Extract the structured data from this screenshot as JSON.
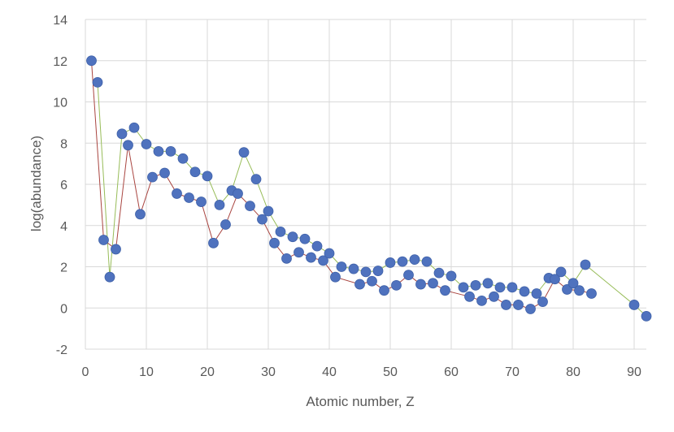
{
  "chart_data": {
    "type": "scatter",
    "xlabel": "Atomic number, Z",
    "ylabel": "log(abundance)",
    "xlim": [
      0,
      92
    ],
    "ylim": [
      -2,
      14
    ],
    "x_ticks": [
      0,
      10,
      20,
      30,
      40,
      50,
      60,
      70,
      80,
      90
    ],
    "y_ticks": [
      -2,
      0,
      2,
      4,
      6,
      8,
      10,
      12,
      14
    ],
    "grid": true,
    "colors": {
      "marker": "#4f72be",
      "odd_line": "#a94540",
      "even_line": "#97bc58",
      "grid": "#d9d9d9",
      "text": "#595959"
    },
    "series": [
      {
        "values": [
          [
            1,
            12.0
          ],
          [
            2,
            10.95
          ],
          [
            3,
            3.3
          ],
          [
            4,
            1.5
          ],
          [
            5,
            2.85
          ],
          [
            6,
            8.45
          ],
          [
            7,
            7.9
          ],
          [
            8,
            8.75
          ],
          [
            9,
            4.55
          ],
          [
            10,
            7.95
          ],
          [
            11,
            6.35
          ],
          [
            12,
            7.6
          ],
          [
            13,
            6.55
          ],
          [
            14,
            7.6
          ],
          [
            15,
            5.55
          ],
          [
            16,
            7.25
          ],
          [
            17,
            5.35
          ],
          [
            18,
            6.6
          ],
          [
            19,
            5.15
          ],
          [
            20,
            6.4
          ],
          [
            21,
            3.15
          ],
          [
            22,
            5.0
          ],
          [
            23,
            4.05
          ],
          [
            24,
            5.7
          ],
          [
            25,
            5.55
          ],
          [
            26,
            7.55
          ],
          [
            27,
            4.95
          ],
          [
            28,
            6.25
          ],
          [
            29,
            4.3
          ],
          [
            30,
            4.7
          ],
          [
            31,
            3.15
          ],
          [
            32,
            3.7
          ],
          [
            33,
            2.4
          ],
          [
            34,
            3.45
          ],
          [
            35,
            2.7
          ],
          [
            36,
            3.35
          ],
          [
            37,
            2.45
          ],
          [
            38,
            3.0
          ],
          [
            39,
            2.3
          ],
          [
            40,
            2.65
          ],
          [
            41,
            1.5
          ],
          [
            42,
            2.0
          ],
          [
            44,
            1.9
          ],
          [
            45,
            1.15
          ],
          [
            46,
            1.75
          ],
          [
            47,
            1.3
          ],
          [
            48,
            1.8
          ],
          [
            49,
            0.85
          ],
          [
            50,
            2.2
          ],
          [
            51,
            1.1
          ],
          [
            52,
            2.25
          ],
          [
            53,
            1.6
          ],
          [
            54,
            2.35
          ],
          [
            55,
            1.15
          ],
          [
            56,
            2.25
          ],
          [
            57,
            1.2
          ],
          [
            58,
            1.7
          ],
          [
            59,
            0.85
          ],
          [
            60,
            1.55
          ],
          [
            62,
            1.0
          ],
          [
            63,
            0.55
          ],
          [
            64,
            1.1
          ],
          [
            65,
            0.35
          ],
          [
            66,
            1.2
          ],
          [
            67,
            0.55
          ],
          [
            68,
            1.0
          ],
          [
            69,
            0.15
          ],
          [
            70,
            1.0
          ],
          [
            71,
            0.15
          ],
          [
            72,
            0.8
          ],
          [
            73,
            -0.05
          ],
          [
            74,
            0.7
          ],
          [
            75,
            0.3
          ],
          [
            76,
            1.45
          ],
          [
            77,
            1.4
          ],
          [
            78,
            1.75
          ],
          [
            79,
            0.9
          ],
          [
            80,
            1.2
          ],
          [
            81,
            0.85
          ],
          [
            82,
            2.1
          ],
          [
            83,
            0.7
          ],
          [
            90,
            0.15
          ],
          [
            92,
            -0.4
          ]
        ]
      }
    ]
  }
}
